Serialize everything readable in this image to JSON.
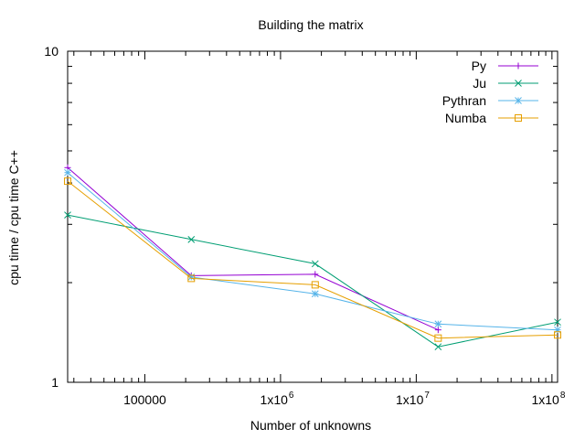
{
  "chart_data": {
    "type": "line",
    "title": "Building the matrix",
    "xlabel": "Number of unknowns",
    "ylabel": "cpu time / cpu time C++",
    "x_scale": "log",
    "y_scale": "log",
    "xlim": [
      27000,
      110000000
    ],
    "ylim": [
      1,
      10
    ],
    "x_ticks": [
      {
        "value": 100000,
        "label": "100000"
      },
      {
        "value": 1000000,
        "label": "1x10",
        "exp": "6"
      },
      {
        "value": 10000000,
        "label": "1x10",
        "exp": "7"
      },
      {
        "value": 100000000,
        "label": "1x10",
        "exp": "8"
      }
    ],
    "y_ticks": [
      {
        "value": 1,
        "label": "1"
      },
      {
        "value": 10,
        "label": "10"
      }
    ],
    "legend_position": "top-right",
    "series": [
      {
        "name": "Py",
        "color": "#9400d3",
        "marker": "plus",
        "x": [
          27000,
          220000,
          1800000,
          14500000
        ],
        "y": [
          4.45,
          2.1,
          2.12,
          1.44
        ]
      },
      {
        "name": "Ju",
        "color": "#009e73",
        "marker": "cross",
        "x": [
          27000,
          220000,
          1800000,
          14500000,
          110000000
        ],
        "y": [
          3.2,
          2.7,
          2.28,
          1.28,
          1.52
        ]
      },
      {
        "name": "Pythran",
        "color": "#56b4e9",
        "marker": "star",
        "x": [
          27000,
          220000,
          1800000,
          14500000,
          110000000
        ],
        "y": [
          4.3,
          2.08,
          1.85,
          1.5,
          1.44
        ]
      },
      {
        "name": "Numba",
        "color": "#e69f00",
        "marker": "square",
        "x": [
          27000,
          220000,
          1800000,
          14500000,
          110000000
        ],
        "y": [
          4.05,
          2.06,
          1.97,
          1.36,
          1.39
        ]
      }
    ]
  }
}
